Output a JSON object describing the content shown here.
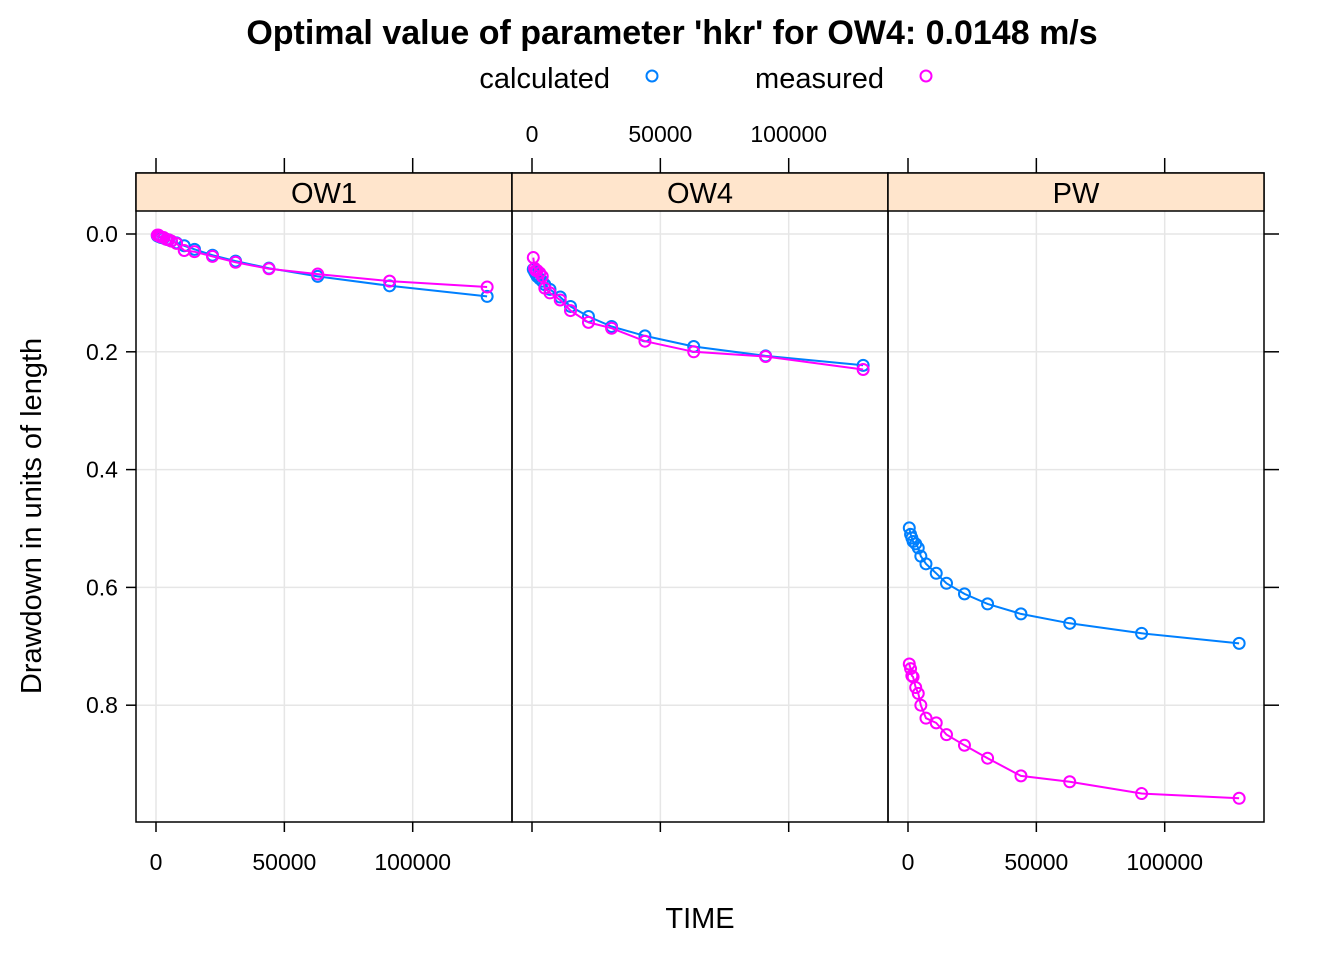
{
  "chart_data": {
    "type": "line",
    "title": "Optimal value of parameter 'hkr' for OW4: 0.0148 m/s",
    "xlabel": "TIME",
    "ylabel": "Drawdown in units of length",
    "xlim": [
      -8000,
      137000
    ],
    "ylim": [
      0,
      1
    ],
    "y_reversed": true,
    "x_ticks": [
      0,
      50000,
      100000
    ],
    "x_tick_labels": [
      "0",
      "50000",
      "100000"
    ],
    "y_ticks": [
      0.0,
      0.2,
      0.4,
      0.6,
      0.8
    ],
    "y_tick_labels": [
      "0.0",
      "0.2",
      "0.4",
      "0.6",
      "0.8"
    ],
    "grid": true,
    "legend_position": "top",
    "legend": [
      {
        "name": "calculated",
        "color": "#0080ff"
      },
      {
        "name": "measured",
        "color": "#ff00ff"
      }
    ],
    "strip_fill": "#ffe5cc",
    "panels": [
      {
        "name": "OW1",
        "series": [
          {
            "name": "calculated",
            "x": [
              500,
              1000,
              1500,
              2000,
              3000,
              4000,
              5000,
              6000,
              8000,
              11000,
              15000,
              22000,
              31000,
              44000,
              63000,
              91000,
              129000
            ],
            "y": [
              0.003,
              0.004,
              0.005,
              0.006,
              0.007,
              0.009,
              0.01,
              0.012,
              0.015,
              0.02,
              0.026,
              0.036,
              0.046,
              0.058,
              0.072,
              0.088,
              0.106
            ]
          },
          {
            "name": "measured",
            "x": [
              500,
              1000,
              1500,
              2000,
              3000,
              4000,
              5000,
              6000,
              8000,
              11000,
              15000,
              22000,
              31000,
              44000,
              63000,
              91000,
              129000
            ],
            "y": [
              0.002,
              0.002,
              0.004,
              0.005,
              0.006,
              0.009,
              0.01,
              0.012,
              0.016,
              0.028,
              0.03,
              0.038,
              0.048,
              0.059,
              0.068,
              0.08,
              0.09
            ]
          }
        ]
      },
      {
        "name": "OW4",
        "series": [
          {
            "name": "calculated",
            "x": [
              500,
              1000,
              1500,
              2000,
              3000,
              4000,
              5000,
              7000,
              11000,
              15000,
              22000,
              31000,
              44000,
              63000,
              91000,
              129000
            ],
            "y": [
              0.06,
              0.064,
              0.068,
              0.072,
              0.076,
              0.08,
              0.086,
              0.094,
              0.107,
              0.123,
              0.14,
              0.157,
              0.173,
              0.191,
              0.207,
              0.223
            ]
          },
          {
            "name": "measured",
            "x": [
              500,
              1000,
              1500,
              2000,
              3000,
              4000,
              5000,
              7000,
              11000,
              15000,
              22000,
              31000,
              44000,
              63000,
              91000,
              129000
            ],
            "y": [
              0.04,
              0.058,
              0.062,
              0.062,
              0.066,
              0.072,
              0.092,
              0.1,
              0.112,
              0.13,
              0.15,
              0.16,
              0.182,
              0.2,
              0.208,
              0.23
            ]
          }
        ]
      },
      {
        "name": "PW",
        "series": [
          {
            "name": "calculated",
            "x": [
              500,
              1000,
              1500,
              2000,
              3000,
              4000,
              5000,
              7000,
              11000,
              15000,
              22000,
              31000,
              44000,
              63000,
              91000,
              129000
            ],
            "y": [
              0.499,
              0.51,
              0.516,
              0.522,
              0.526,
              0.533,
              0.547,
              0.56,
              0.576,
              0.593,
              0.611,
              0.628,
              0.645,
              0.661,
              0.678,
              0.695
            ]
          },
          {
            "name": "measured",
            "x": [
              500,
              1000,
              1500,
              2000,
              3000,
              4000,
              5000,
              7000,
              11000,
              15000,
              22000,
              31000,
              44000,
              63000,
              91000,
              129000
            ],
            "y": [
              0.73,
              0.738,
              0.75,
              0.752,
              0.77,
              0.78,
              0.8,
              0.822,
              0.83,
              0.85,
              0.868,
              0.89,
              0.92,
              0.93,
              0.95,
              0.958
            ]
          }
        ]
      }
    ]
  }
}
